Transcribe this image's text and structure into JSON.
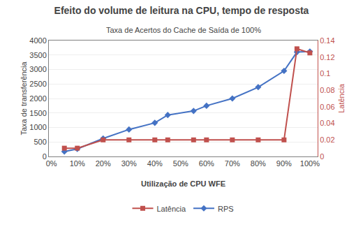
{
  "chart_data": {
    "type": "line",
    "title": "Efeito do volume de leitura na CPU, tempo de resposta",
    "subtitle": "Taxa de Acertos do Cache de Saída de 100%",
    "xlabel": "Utilização de CPU WFE",
    "ylabel": "Taxa de transferência",
    "y2label": "Latência",
    "x": [
      0.05,
      0.1,
      0.2,
      0.3,
      0.4,
      0.45,
      0.55,
      0.6,
      0.7,
      0.8,
      0.9,
      0.95,
      1.0
    ],
    "series": [
      {
        "name": "Latência",
        "axis": "y2",
        "color": "#C0504D",
        "marker": "square",
        "values": [
          0.01,
          0.01,
          0.02,
          0.02,
          0.02,
          0.02,
          0.02,
          0.02,
          0.02,
          0.02,
          0.02,
          0.13,
          0.125
        ]
      },
      {
        "name": "RPS",
        "color": "#4472C4",
        "marker": "diamond",
        "values": [
          170,
          260,
          620,
          930,
          1160,
          1430,
          1570,
          1750,
          2000,
          2390,
          2950,
          3600,
          3620
        ]
      }
    ],
    "xlim": [
      -0.01,
      1.03
    ],
    "xticks": [
      {
        "value": 0.0,
        "label": "0%"
      },
      {
        "value": 0.1,
        "label": "10%"
      },
      {
        "value": 0.2,
        "label": "20%"
      },
      {
        "value": 0.3,
        "label": "30%"
      },
      {
        "value": 0.4,
        "label": "40%"
      },
      {
        "value": 0.5,
        "label": "50%"
      },
      {
        "value": 0.6,
        "label": "60%"
      },
      {
        "value": 0.7,
        "label": "70%"
      },
      {
        "value": 0.8,
        "label": "80%"
      },
      {
        "value": 0.9,
        "label": "90%"
      },
      {
        "value": 1.0,
        "label": "100%"
      }
    ],
    "ylim": [
      0,
      4000
    ],
    "yticks": [
      0,
      500,
      1000,
      1500,
      2000,
      2500,
      3000,
      3500,
      4000
    ],
    "y2lim": [
      0,
      0.14
    ],
    "y2ticks": [
      0,
      0.02,
      0.04,
      0.06,
      0.08,
      0.1,
      0.12,
      0.14
    ],
    "grid": "y",
    "legend": "bottom"
  }
}
